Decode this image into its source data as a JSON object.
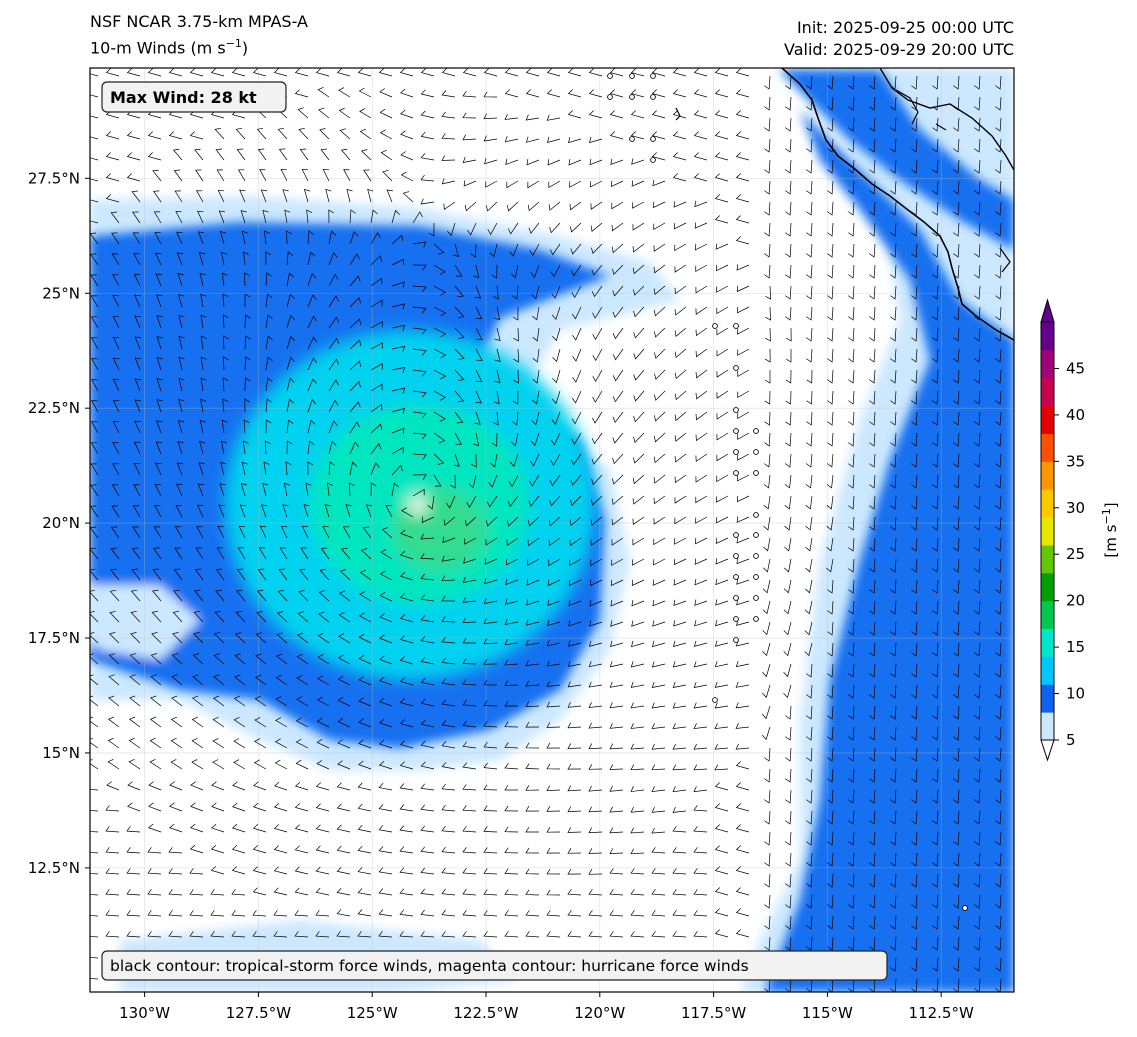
{
  "header": {
    "model_title": "NSF NCAR 3.75-km MPAS-A",
    "field_title_main": "10-m Winds (m s",
    "field_title_exp": "−1",
    "field_title_close": ")",
    "init_time": "Init: 2025-09-25 00:00 UTC",
    "valid_time": "Valid: 2025-09-29 20:00 UTC"
  },
  "map": {
    "max_wind_label": "Max Wind: 28 kt",
    "contour_legend": "black contour: tropical-storm force winds, magenta contour: hurricane force winds",
    "lon_range": [
      -131.2,
      -110.9
    ],
    "lat_range": [
      9.8,
      29.9
    ],
    "lon_ticks": [
      "130°W",
      "127.5°W",
      "125°W",
      "122.5°W",
      "120°W",
      "117.5°W",
      "115°W",
      "112.5°W"
    ],
    "lon_tick_values": [
      -130,
      -127.5,
      -125,
      -122.5,
      -120,
      -117.5,
      -115,
      -112.5
    ],
    "lat_ticks": [
      "27.5°N",
      "25°N",
      "22.5°N",
      "20°N",
      "17.5°N",
      "15°N",
      "12.5°N"
    ],
    "lat_tick_values": [
      27.5,
      25,
      22.5,
      20,
      17.5,
      15,
      12.5
    ],
    "storm_center": {
      "lon": -124.0,
      "lat": 20.4
    }
  },
  "colorbar": {
    "unit_main": "[m s",
    "unit_exp": "−1",
    "unit_close": "]",
    "ticks": [
      "5",
      "10",
      "15",
      "20",
      "25",
      "30",
      "35",
      "40",
      "45"
    ],
    "tick_values": [
      5,
      10,
      15,
      20,
      25,
      30,
      35,
      40,
      45
    ],
    "range": [
      5,
      50
    ],
    "colors": [
      "#cce8ff",
      "#0f62f2",
      "#00c8ff",
      "#00e6c8",
      "#00c850",
      "#00a000",
      "#64c800",
      "#e6e600",
      "#ffc800",
      "#ff9600",
      "#ff5000",
      "#e60000",
      "#c80050",
      "#a00078",
      "#64008c"
    ]
  },
  "colors": {
    "calm": "#ffffff",
    "light": "#cce8ff",
    "blue": "#1470f0",
    "cyan": "#00d2f0",
    "teal": "#00e6c0",
    "green": "#30dc90"
  }
}
